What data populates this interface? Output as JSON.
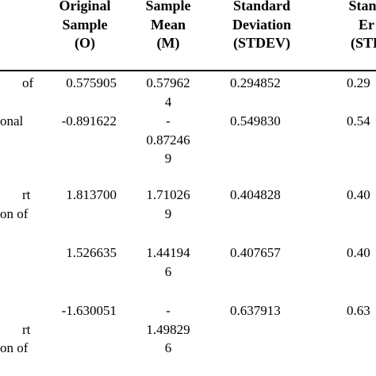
{
  "table": {
    "header": [
      [
        "Original",
        "Sample",
        "(O)"
      ],
      [
        "Sample",
        "Mean",
        "(M)"
      ],
      [
        "Standard",
        "Deviation",
        "(STDEV)"
      ],
      [
        "Stand",
        "Er",
        "(STE"
      ]
    ],
    "rows": [
      {
        "label": [
          "of"
        ],
        "cells": [
          [
            "0.575905"
          ],
          [
            "0.57962",
            "4"
          ],
          [
            "0.294852"
          ],
          [
            "0.29"
          ]
        ]
      },
      {
        "label": [
          "onal"
        ],
        "cells": [
          [
            "-0.891622"
          ],
          [
            "-",
            "0.87246",
            "9"
          ],
          [
            "0.549830"
          ],
          [
            "0.54"
          ]
        ]
      },
      {
        "label": [
          "rt",
          "on of"
        ],
        "cells": [
          [
            "1.813700"
          ],
          [
            "1.71026",
            "9"
          ],
          [
            "0.404828"
          ],
          [
            "0.40"
          ]
        ]
      },
      {
        "label": [],
        "cells": [
          [
            "1.526635"
          ],
          [
            "1.44194",
            "6"
          ],
          [
            "0.407657"
          ],
          [
            "0.40"
          ]
        ]
      },
      {
        "label": [
          "rt",
          "on of"
        ],
        "cells": [
          [
            "-1.630051"
          ],
          [
            "-",
            "1.49829",
            "6"
          ],
          [
            "0.637913"
          ],
          [
            "0.63"
          ]
        ]
      }
    ]
  }
}
